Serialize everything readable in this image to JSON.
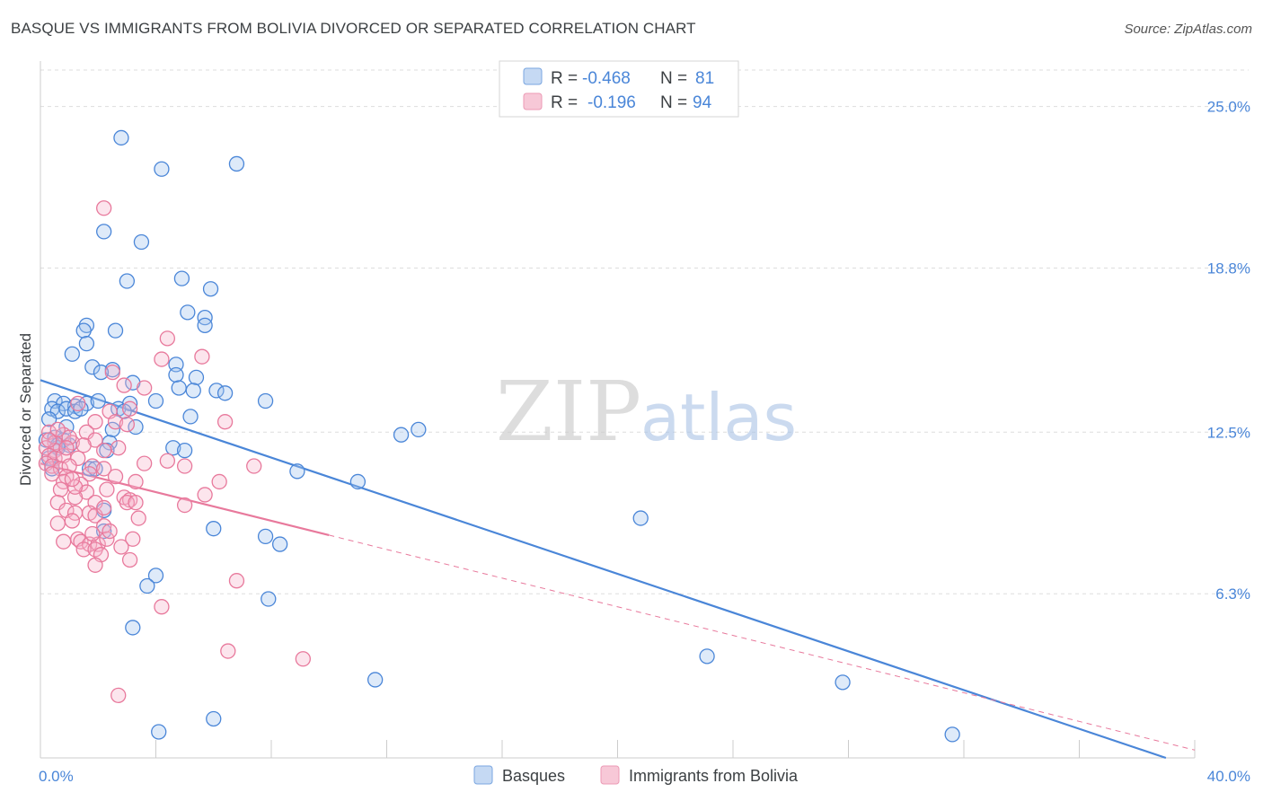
{
  "title": "BASQUE VS IMMIGRANTS FROM BOLIVIA DIVORCED OR SEPARATED CORRELATION CHART",
  "source": "Source: ZipAtlas.com",
  "watermark": {
    "zip": "ZIP",
    "atlas": "atlas"
  },
  "colors": {
    "basques": "#4a86d8",
    "bolivia": "#e8799c",
    "axis_text": "#4a86d8"
  },
  "chart_data": {
    "type": "scatter",
    "xlabel": "",
    "ylabel": "Divorced or Separated",
    "xlim": [
      0,
      40
    ],
    "ylim": [
      0,
      26.4
    ],
    "x_tick_labels": [
      "0.0%",
      "40.0%"
    ],
    "y_ticks": [
      {
        "value": 6.3,
        "label": "6.3%"
      },
      {
        "value": 12.5,
        "label": "12.5%"
      },
      {
        "value": 18.8,
        "label": "18.8%"
      },
      {
        "value": 25.0,
        "label": "25.0%"
      }
    ],
    "legend": {
      "r_label": "R =",
      "n_label": "N =",
      "entries": [
        {
          "name": "Basques",
          "r": "-0.468",
          "n": "81"
        },
        {
          "name": "Immigrants from Bolivia",
          "r": "-0.196",
          "n": "94"
        }
      ]
    },
    "series": [
      {
        "name": "Basques",
        "trend": {
          "x0": 0,
          "y0": 14.5,
          "x1": 39.0,
          "y1": 0,
          "solid_to": 39.0
        },
        "points": [
          [
            2.8,
            23.8
          ],
          [
            4.2,
            22.6
          ],
          [
            6.8,
            22.8
          ],
          [
            2.2,
            20.2
          ],
          [
            3.5,
            19.8
          ],
          [
            4.9,
            18.4
          ],
          [
            3.0,
            18.3
          ],
          [
            5.9,
            18.0
          ],
          [
            1.6,
            16.6
          ],
          [
            5.1,
            17.1
          ],
          [
            5.7,
            16.9
          ],
          [
            5.7,
            16.6
          ],
          [
            2.6,
            16.4
          ],
          [
            1.5,
            16.4
          ],
          [
            1.6,
            15.9
          ],
          [
            1.1,
            15.5
          ],
          [
            1.8,
            15.0
          ],
          [
            2.5,
            14.9
          ],
          [
            4.7,
            15.1
          ],
          [
            2.1,
            14.8
          ],
          [
            4.7,
            14.7
          ],
          [
            5.4,
            14.6
          ],
          [
            3.2,
            14.4
          ],
          [
            4.8,
            14.2
          ],
          [
            5.3,
            14.1
          ],
          [
            6.1,
            14.1
          ],
          [
            6.4,
            14.0
          ],
          [
            0.5,
            13.7
          ],
          [
            0.8,
            13.6
          ],
          [
            1.2,
            13.5
          ],
          [
            1.6,
            13.6
          ],
          [
            2.0,
            13.7
          ],
          [
            3.1,
            13.6
          ],
          [
            4.0,
            13.7
          ],
          [
            7.8,
            13.7
          ],
          [
            0.4,
            13.4
          ],
          [
            0.6,
            13.3
          ],
          [
            0.9,
            13.4
          ],
          [
            1.2,
            13.3
          ],
          [
            1.4,
            13.4
          ],
          [
            2.7,
            13.4
          ],
          [
            2.9,
            13.3
          ],
          [
            5.2,
            13.1
          ],
          [
            0.3,
            13.0
          ],
          [
            0.9,
            12.7
          ],
          [
            2.5,
            12.6
          ],
          [
            3.3,
            12.7
          ],
          [
            12.5,
            12.4
          ],
          [
            13.1,
            12.6
          ],
          [
            0.2,
            12.2
          ],
          [
            0.5,
            12.3
          ],
          [
            0.8,
            12.2
          ],
          [
            1.0,
            12.0
          ],
          [
            0.6,
            11.9
          ],
          [
            2.4,
            12.1
          ],
          [
            4.6,
            11.9
          ],
          [
            5.0,
            11.8
          ],
          [
            2.3,
            11.8
          ],
          [
            0.3,
            11.5
          ],
          [
            1.7,
            11.1
          ],
          [
            1.9,
            11.1
          ],
          [
            0.4,
            11.1
          ],
          [
            8.9,
            11.0
          ],
          [
            11.0,
            10.6
          ],
          [
            2.2,
            9.5
          ],
          [
            6.0,
            8.8
          ],
          [
            7.8,
            8.5
          ],
          [
            8.3,
            8.2
          ],
          [
            2.2,
            8.7
          ],
          [
            20.8,
            9.2
          ],
          [
            4.0,
            7.0
          ],
          [
            3.7,
            6.6
          ],
          [
            7.9,
            6.1
          ],
          [
            3.2,
            5.0
          ],
          [
            23.1,
            3.9
          ],
          [
            11.6,
            3.0
          ],
          [
            27.8,
            2.9
          ],
          [
            6.0,
            1.5
          ],
          [
            4.1,
            1.0
          ],
          [
            31.6,
            0.9
          ],
          [
            0.6,
            12.0
          ]
        ]
      },
      {
        "name": "Immigrants from Bolivia",
        "trend": {
          "x0": 0,
          "y0": 11.3,
          "x1": 40.0,
          "y1": 0.3,
          "solid_to": 10.0
        },
        "points": [
          [
            2.2,
            21.1
          ],
          [
            4.4,
            16.1
          ],
          [
            5.6,
            15.4
          ],
          [
            4.2,
            15.3
          ],
          [
            2.5,
            14.8
          ],
          [
            2.9,
            14.3
          ],
          [
            3.6,
            14.2
          ],
          [
            1.3,
            13.6
          ],
          [
            2.4,
            13.3
          ],
          [
            3.1,
            13.4
          ],
          [
            1.9,
            12.9
          ],
          [
            2.6,
            12.9
          ],
          [
            6.4,
            12.9
          ],
          [
            0.3,
            12.5
          ],
          [
            0.8,
            12.4
          ],
          [
            1.6,
            12.5
          ],
          [
            1.9,
            12.2
          ],
          [
            3.0,
            12.8
          ],
          [
            0.5,
            12.1
          ],
          [
            1.1,
            12.1
          ],
          [
            0.2,
            11.9
          ],
          [
            0.5,
            11.8
          ],
          [
            0.3,
            11.6
          ],
          [
            0.5,
            11.5
          ],
          [
            0.8,
            11.6
          ],
          [
            1.3,
            11.5
          ],
          [
            2.2,
            11.8
          ],
          [
            0.2,
            11.3
          ],
          [
            0.4,
            11.2
          ],
          [
            0.7,
            11.1
          ],
          [
            1.0,
            11.2
          ],
          [
            1.8,
            11.2
          ],
          [
            3.6,
            11.3
          ],
          [
            4.4,
            11.4
          ],
          [
            5.0,
            11.2
          ],
          [
            7.4,
            11.2
          ],
          [
            0.4,
            10.9
          ],
          [
            0.9,
            10.8
          ],
          [
            1.7,
            10.9
          ],
          [
            0.8,
            10.6
          ],
          [
            1.4,
            10.5
          ],
          [
            3.3,
            10.6
          ],
          [
            6.2,
            10.6
          ],
          [
            0.7,
            10.3
          ],
          [
            1.6,
            10.2
          ],
          [
            2.3,
            10.3
          ],
          [
            5.7,
            10.1
          ],
          [
            1.2,
            10.0
          ],
          [
            2.9,
            10.0
          ],
          [
            3.1,
            9.9
          ],
          [
            0.6,
            9.8
          ],
          [
            1.9,
            9.8
          ],
          [
            3.0,
            9.8
          ],
          [
            3.3,
            9.8
          ],
          [
            5.0,
            9.7
          ],
          [
            0.9,
            9.5
          ],
          [
            1.2,
            9.4
          ],
          [
            1.7,
            9.4
          ],
          [
            1.9,
            9.3
          ],
          [
            2.2,
            9.6
          ],
          [
            0.6,
            9.0
          ],
          [
            1.1,
            9.1
          ],
          [
            2.2,
            8.9
          ],
          [
            1.3,
            8.4
          ],
          [
            1.4,
            8.3
          ],
          [
            1.7,
            8.2
          ],
          [
            2.0,
            8.2
          ],
          [
            2.3,
            8.4
          ],
          [
            3.2,
            8.4
          ],
          [
            1.5,
            8.0
          ],
          [
            1.9,
            8.0
          ],
          [
            2.1,
            7.8
          ],
          [
            3.1,
            7.6
          ],
          [
            1.9,
            7.4
          ],
          [
            6.8,
            6.8
          ],
          [
            4.2,
            5.8
          ],
          [
            6.5,
            4.1
          ],
          [
            9.1,
            3.8
          ],
          [
            2.7,
            2.4
          ],
          [
            1.0,
            12.3
          ],
          [
            0.6,
            12.6
          ],
          [
            1.5,
            12.0
          ],
          [
            2.7,
            11.9
          ],
          [
            0.9,
            11.9
          ],
          [
            0.3,
            12.2
          ],
          [
            2.2,
            11.1
          ],
          [
            1.2,
            10.4
          ],
          [
            2.6,
            10.8
          ],
          [
            3.4,
            9.2
          ],
          [
            1.8,
            8.6
          ],
          [
            2.4,
            8.7
          ],
          [
            0.8,
            8.3
          ],
          [
            2.8,
            8.1
          ],
          [
            1.1,
            10.7
          ]
        ]
      }
    ]
  }
}
